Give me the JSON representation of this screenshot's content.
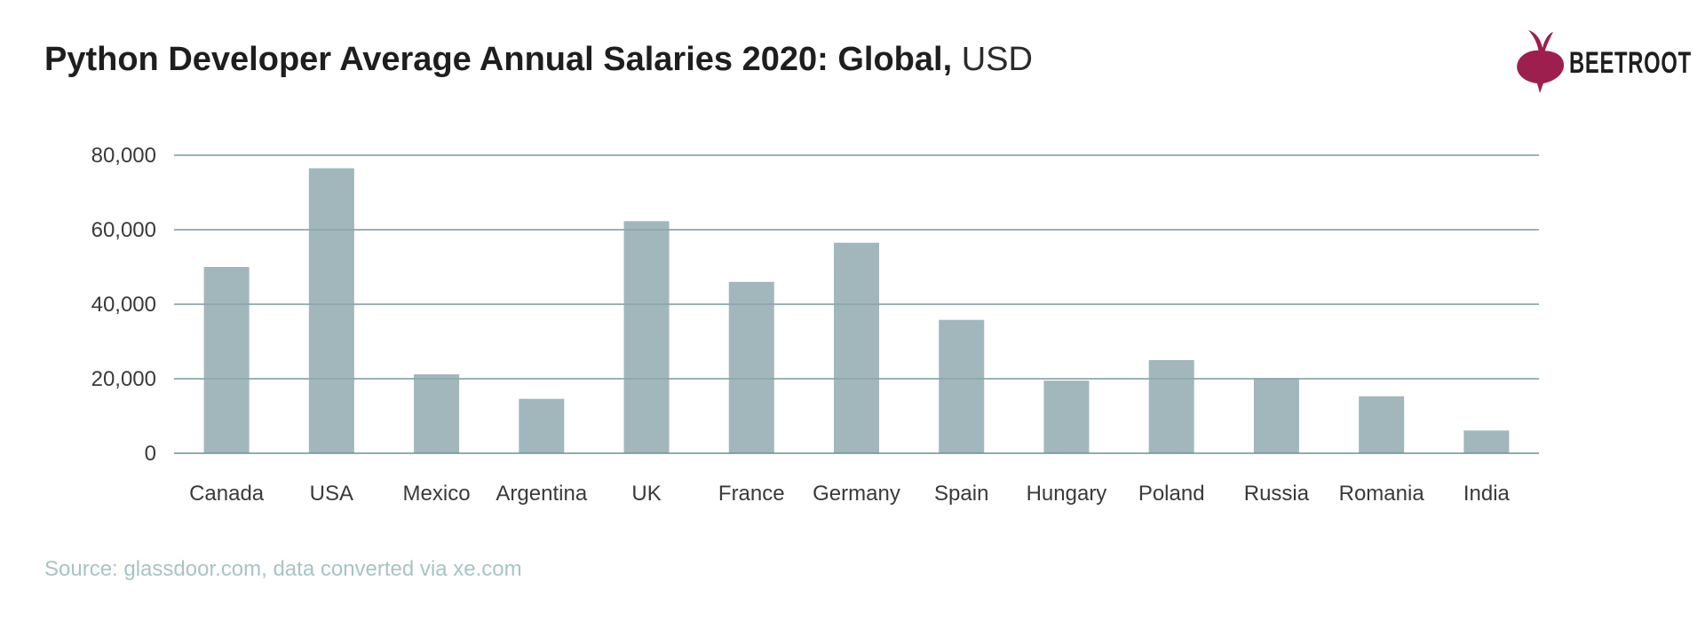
{
  "header": {
    "title_bold": "Python Developer Average Annual Salaries 2020: Global,",
    "title_unit": "USD"
  },
  "brand": {
    "logo_text": "BEETROOT",
    "logo_color": "#9d1f4d"
  },
  "footer": {
    "source": "Source: glassdoor.com, data converted via xe.com"
  },
  "colors": {
    "bar": "#a1b7bb",
    "grid": "#6e8f97",
    "axis_text": "#3a3a3a"
  },
  "chart_data": {
    "type": "bar",
    "title": "Python Developer Average Annual Salaries 2020: Global, USD",
    "xlabel": "",
    "ylabel": "",
    "categories": [
      "Canada",
      "USA",
      "Mexico",
      "Argentina",
      "UK",
      "France",
      "Germany",
      "Spain",
      "Hungary",
      "Poland",
      "Russia",
      "Romania",
      "India"
    ],
    "values": [
      50000,
      76500,
      21200,
      14600,
      62300,
      46000,
      56500,
      35800,
      19500,
      25000,
      20200,
      15300,
      6100
    ],
    "ylim": [
      0,
      80000
    ],
    "yticks": [
      0,
      20000,
      40000,
      60000,
      80000
    ],
    "ytick_labels": [
      "0",
      "20,000",
      "40,000",
      "60,000",
      "80,000"
    ],
    "grid": true,
    "legend": "none"
  }
}
